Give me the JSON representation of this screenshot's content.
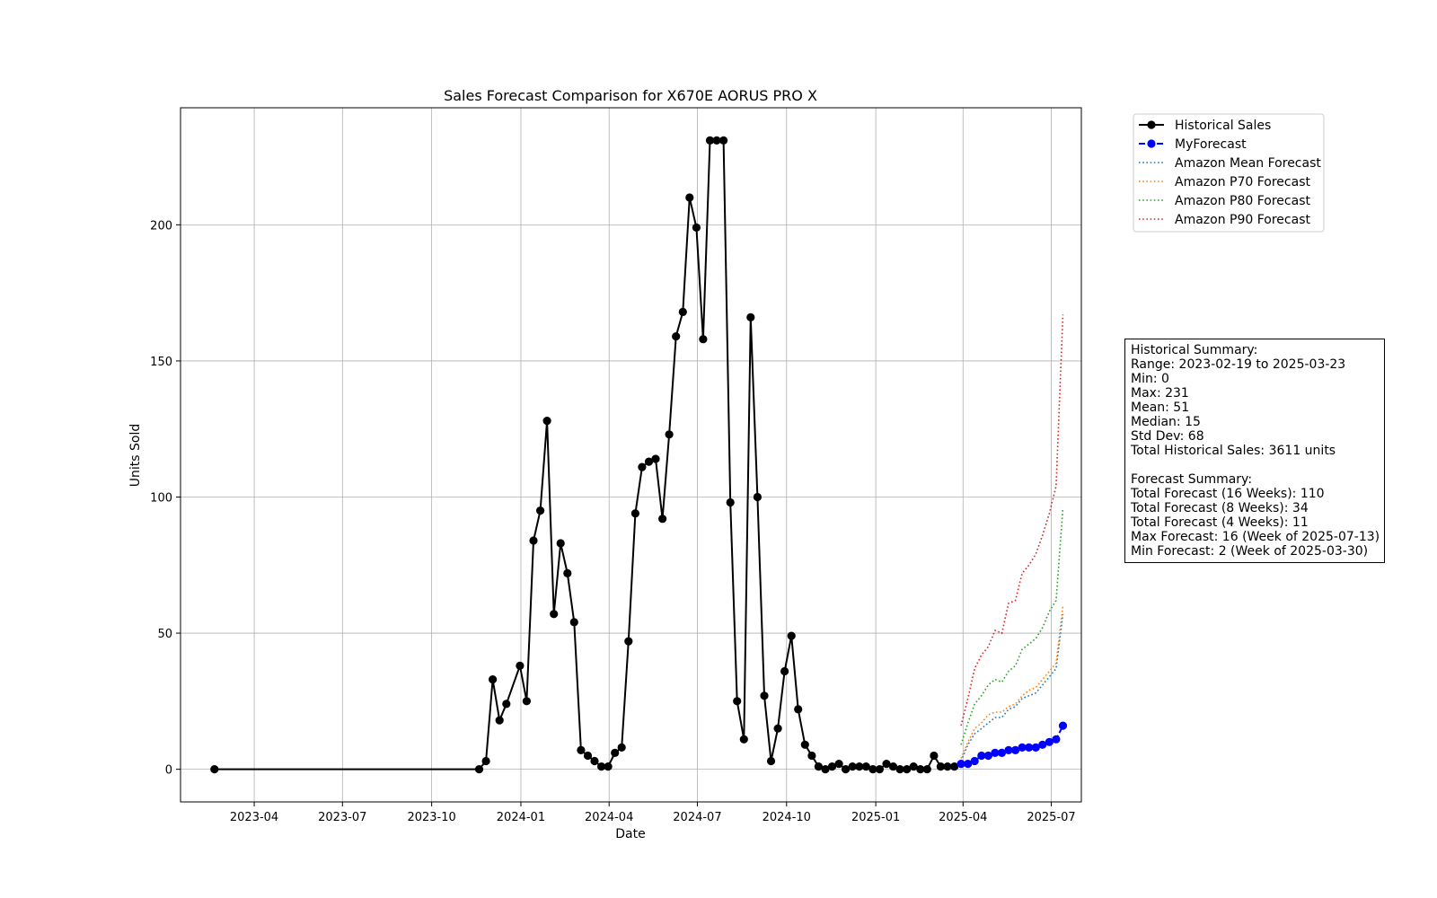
{
  "chart_data": {
    "type": "line",
    "title": "Sales Forecast Comparison for X670E AORUS PRO X",
    "xlabel": "Date",
    "ylabel": "Units Sold",
    "xlim": [
      "2023-01-15",
      "2025-08-01"
    ],
    "ylim": [
      -12,
      243
    ],
    "x_ticks": [
      "2023-04",
      "2023-07",
      "2023-10",
      "2024-01",
      "2024-04",
      "2024-07",
      "2024-10",
      "2025-01",
      "2025-04",
      "2025-07"
    ],
    "y_ticks": [
      0,
      50,
      100,
      150,
      200
    ],
    "grid": true,
    "legend_position": "outside-top-right",
    "series": [
      {
        "name": "Historical Sales",
        "color": "#000000",
        "style": "solid-marker",
        "x": [
          "2023-02-19",
          "2023-11-19",
          "2023-11-26",
          "2023-12-03",
          "2023-12-10",
          "2023-12-17",
          "2023-12-31",
          "2024-01-07",
          "2024-01-14",
          "2024-01-21",
          "2024-01-28",
          "2024-02-04",
          "2024-02-11",
          "2024-02-18",
          "2024-02-25",
          "2024-03-03",
          "2024-03-10",
          "2024-03-17",
          "2024-03-24",
          "2024-03-31",
          "2024-04-07",
          "2024-04-14",
          "2024-04-21",
          "2024-04-28",
          "2024-05-05",
          "2024-05-12",
          "2024-05-19",
          "2024-05-26",
          "2024-06-02",
          "2024-06-09",
          "2024-06-16",
          "2024-06-23",
          "2024-06-30",
          "2024-07-07",
          "2024-07-14",
          "2024-07-21",
          "2024-07-28",
          "2024-08-04",
          "2024-08-11",
          "2024-08-18",
          "2024-08-25",
          "2024-09-01",
          "2024-09-08",
          "2024-09-15",
          "2024-09-22",
          "2024-09-29",
          "2024-10-06",
          "2024-10-13",
          "2024-10-20",
          "2024-10-27",
          "2024-11-03",
          "2024-11-10",
          "2024-11-17",
          "2024-11-24",
          "2024-12-01",
          "2024-12-08",
          "2024-12-15",
          "2024-12-22",
          "2024-12-29",
          "2025-01-05",
          "2025-01-12",
          "2025-01-19",
          "2025-01-26",
          "2025-02-02",
          "2025-02-09",
          "2025-02-16",
          "2025-02-23",
          "2025-03-02",
          "2025-03-09",
          "2025-03-16",
          "2025-03-23"
        ],
        "values": [
          0,
          0,
          3,
          33,
          18,
          24,
          38,
          25,
          84,
          95,
          128,
          57,
          83,
          72,
          54,
          7,
          5,
          3,
          1,
          1,
          6,
          8,
          47,
          94,
          111,
          113,
          114,
          92,
          123,
          159,
          168,
          210,
          199,
          158,
          231,
          231,
          231,
          98,
          25,
          11,
          166,
          100,
          27,
          3,
          15,
          36,
          49,
          22,
          9,
          5,
          1,
          0,
          1,
          2,
          0,
          1,
          1,
          1,
          0,
          0,
          2,
          1,
          0,
          0,
          1,
          0,
          0,
          5,
          1,
          1,
          1
        ]
      },
      {
        "name": "MyForecast",
        "color": "#0000ff",
        "style": "dashed-marker",
        "x": [
          "2025-03-30",
          "2025-04-06",
          "2025-04-13",
          "2025-04-20",
          "2025-04-27",
          "2025-05-04",
          "2025-05-11",
          "2025-05-18",
          "2025-05-25",
          "2025-06-01",
          "2025-06-08",
          "2025-06-15",
          "2025-06-22",
          "2025-06-29",
          "2025-07-06",
          "2025-07-13"
        ],
        "values": [
          2,
          2,
          3,
          5,
          5,
          6,
          6,
          7,
          7,
          8,
          8,
          8,
          9,
          10,
          11,
          16
        ]
      },
      {
        "name": "Amazon Mean Forecast",
        "color": "#1f77b4",
        "style": "dotted",
        "x": [
          "2025-03-30",
          "2025-04-06",
          "2025-04-13",
          "2025-04-20",
          "2025-04-27",
          "2025-05-04",
          "2025-05-11",
          "2025-05-18",
          "2025-05-25",
          "2025-06-01",
          "2025-06-08",
          "2025-06-15",
          "2025-06-22",
          "2025-06-29",
          "2025-07-06",
          "2025-07-13"
        ],
        "values": [
          3,
          9,
          13,
          15,
          17,
          19,
          19,
          22,
          23,
          26,
          27,
          28,
          31,
          34,
          37,
          57
        ]
      },
      {
        "name": "Amazon P70 Forecast",
        "color": "#ff7f0e",
        "style": "dotted",
        "x": [
          "2025-03-30",
          "2025-04-06",
          "2025-04-13",
          "2025-04-20",
          "2025-04-27",
          "2025-05-04",
          "2025-05-11",
          "2025-05-18",
          "2025-05-25",
          "2025-06-01",
          "2025-06-08",
          "2025-06-15",
          "2025-06-22",
          "2025-06-29",
          "2025-07-06",
          "2025-07-13"
        ],
        "values": [
          4,
          10,
          15,
          17,
          20,
          21,
          21,
          23,
          24,
          27,
          29,
          30,
          33,
          36,
          39,
          60
        ]
      },
      {
        "name": "Amazon P80 Forecast",
        "color": "#2ca02c",
        "style": "dotted",
        "x": [
          "2025-03-30",
          "2025-04-06",
          "2025-04-13",
          "2025-04-20",
          "2025-04-27",
          "2025-05-04",
          "2025-05-11",
          "2025-05-18",
          "2025-05-25",
          "2025-06-01",
          "2025-06-08",
          "2025-06-15",
          "2025-06-22",
          "2025-06-29",
          "2025-07-06",
          "2025-07-13"
        ],
        "values": [
          9,
          17,
          24,
          27,
          31,
          33,
          32,
          36,
          38,
          44,
          46,
          48,
          52,
          58,
          62,
          96
        ]
      },
      {
        "name": "Amazon P90 Forecast",
        "color": "#d62728",
        "style": "dotted",
        "x": [
          "2025-03-30",
          "2025-04-06",
          "2025-04-13",
          "2025-04-20",
          "2025-04-27",
          "2025-05-04",
          "2025-05-11",
          "2025-05-18",
          "2025-05-25",
          "2025-06-01",
          "2025-06-08",
          "2025-06-15",
          "2025-06-22",
          "2025-06-29",
          "2025-07-06",
          "2025-07-13"
        ],
        "values": [
          16,
          26,
          37,
          42,
          45,
          51,
          50,
          61,
          62,
          72,
          75,
          79,
          86,
          94,
          104,
          167
        ]
      }
    ],
    "summary_lines": [
      "Historical Summary:",
      "Range: 2023-02-19 to 2025-03-23",
      "Min: 0",
      "Max: 231",
      "Mean: 51",
      "Median: 15",
      "Std Dev: 68",
      "Total Historical Sales: 3611 units",
      "",
      "Forecast Summary:",
      "Total Forecast (16 Weeks): 110",
      "Total Forecast (8 Weeks): 34",
      "Total Forecast (4 Weeks): 11",
      "Max Forecast: 16 (Week of 2025-07-13)",
      "Min Forecast: 2 (Week of 2025-03-30)"
    ]
  }
}
